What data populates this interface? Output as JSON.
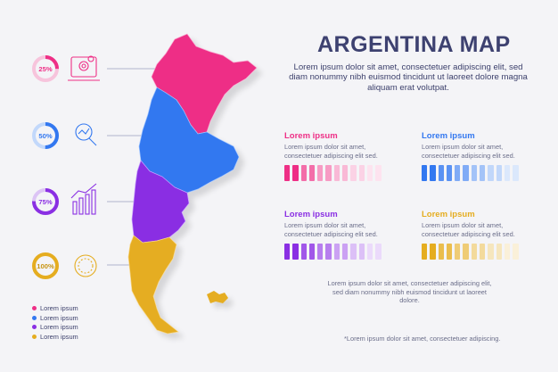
{
  "title": "ARGENTINA MAP",
  "subtitle": "Lorem ipsum dolor sit amet, consectetuer adipiscing elit, sed diam nonummy nibh euismod tincidunt ut laoreet dolore magna aliquam erat volutpat.",
  "colors": {
    "pink": "#ee2f86",
    "blue": "#3378f0",
    "purple": "#8a2fe3",
    "yellow": "#e5ad20",
    "navy": "#3d4170"
  },
  "indicators": [
    {
      "percent": "25%",
      "value": 25,
      "icon": "gear-laptop-icon",
      "color": "#ee2f86"
    },
    {
      "percent": "50%",
      "value": 50,
      "icon": "magnifier-chart-icon",
      "color": "#3378f0"
    },
    {
      "percent": "75%",
      "value": 75,
      "icon": "bar-chart-trend-icon",
      "color": "#8a2fe3"
    },
    {
      "percent": "100%",
      "value": 100,
      "icon": "gauge-icon",
      "color": "#e5ad20"
    }
  ],
  "stats": [
    {
      "label": "Lorem ipsum",
      "desc": "Lorem ipsum dolor sit amet, consectetuer adipiscing elit sed.",
      "color": "#ee2f86"
    },
    {
      "label": "Lorem ipsum",
      "desc": "Lorem ipsum dolor sit amet, consectetuer adipiscing elit sed.",
      "color": "#3378f0"
    },
    {
      "label": "Lorem ipsum",
      "desc": "Lorem ipsum dolor sit amet, consectetuer adipiscing elit sed.",
      "color": "#8a2fe3"
    },
    {
      "label": "Lorem ipsum",
      "desc": "Lorem ipsum dolor sit amet, consectetuer adipiscing elit sed.",
      "color": "#e5ad20"
    }
  ],
  "footer_text": "Lorem ipsum dolor sit amet, consectetuer adipiscing elit, sed diam nonummy nibh euismod tincidunt ut laoreet dolore.",
  "footnote": "*Lorem ipsum dolor sit amet, consectetuer adipiscing.",
  "legend": [
    {
      "label": "Lorem ipsum",
      "color": "#ee2f86"
    },
    {
      "label": "Lorem ipsum",
      "color": "#3378f0"
    },
    {
      "label": "Lorem ipsum",
      "color": "#8a2fe3"
    },
    {
      "label": "Lorem ipsum",
      "color": "#e5ad20"
    }
  ]
}
